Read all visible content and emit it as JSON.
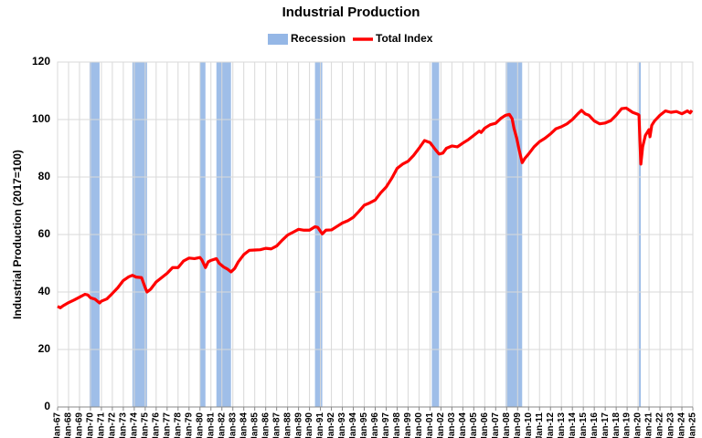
{
  "chart_data": {
    "type": "line",
    "title": "Industrial Production",
    "y_label": "Industrial Production (2017=100)",
    "ylim": [
      0,
      120
    ],
    "yticks": [
      0,
      20,
      40,
      60,
      80,
      100,
      120
    ],
    "xlim": [
      "1967-01",
      "2025-01"
    ],
    "xticks": [
      {
        "value": "1967-01",
        "label": "Jan-67"
      },
      {
        "value": "1968-01",
        "label": "Jan-68"
      },
      {
        "value": "1969-01",
        "label": "Jan-69"
      },
      {
        "value": "1970-01",
        "label": "Jan-70"
      },
      {
        "value": "1971-01",
        "label": "Jan-71"
      },
      {
        "value": "1972-01",
        "label": "Jan-72"
      },
      {
        "value": "1973-01",
        "label": "Jan-73"
      },
      {
        "value": "1974-01",
        "label": "Jan-74"
      },
      {
        "value": "1975-01",
        "label": "Jan-75"
      },
      {
        "value": "1976-01",
        "label": "Jan-76"
      },
      {
        "value": "1977-01",
        "label": "Jan-77"
      },
      {
        "value": "1978-01",
        "label": "Jan-78"
      },
      {
        "value": "1979-01",
        "label": "Jan-79"
      },
      {
        "value": "1980-01",
        "label": "Jan-80"
      },
      {
        "value": "1981-01",
        "label": "Jan-81"
      },
      {
        "value": "1982-01",
        "label": "Jan-82"
      },
      {
        "value": "1983-01",
        "label": "Jan-83"
      },
      {
        "value": "1984-01",
        "label": "Jan-84"
      },
      {
        "value": "1985-01",
        "label": "Jan-85"
      },
      {
        "value": "1986-01",
        "label": "Jan-86"
      },
      {
        "value": "1987-01",
        "label": "Jan-87"
      },
      {
        "value": "1988-01",
        "label": "Jan-88"
      },
      {
        "value": "1989-01",
        "label": "Jan-89"
      },
      {
        "value": "1990-01",
        "label": "Jan-90"
      },
      {
        "value": "1991-01",
        "label": "Jan-91"
      },
      {
        "value": "1992-01",
        "label": "Jan-92"
      },
      {
        "value": "1993-01",
        "label": "Jan-93"
      },
      {
        "value": "1994-01",
        "label": "Jan-94"
      },
      {
        "value": "1995-01",
        "label": "Jan-95"
      },
      {
        "value": "1996-01",
        "label": "Jan-96"
      },
      {
        "value": "1997-01",
        "label": "Jan-97"
      },
      {
        "value": "1998-01",
        "label": "Jan-98"
      },
      {
        "value": "1999-01",
        "label": "Jan-99"
      },
      {
        "value": "2000-01",
        "label": "Jan-00"
      },
      {
        "value": "2001-01",
        "label": "Jan-01"
      },
      {
        "value": "2002-01",
        "label": "Jan-02"
      },
      {
        "value": "2003-01",
        "label": "Jan-03"
      },
      {
        "value": "2004-01",
        "label": "Jan-04"
      },
      {
        "value": "2005-01",
        "label": "Jan-05"
      },
      {
        "value": "2006-01",
        "label": "Jan-06"
      },
      {
        "value": "2007-01",
        "label": "Jan-07"
      },
      {
        "value": "2008-01",
        "label": "Jan-08"
      },
      {
        "value": "2009-01",
        "label": "Jan-09"
      },
      {
        "value": "2010-01",
        "label": "Jan-10"
      },
      {
        "value": "2011-01",
        "label": "Jan-11"
      },
      {
        "value": "2012-01",
        "label": "Jan-12"
      },
      {
        "value": "2013-01",
        "label": "Jan-13"
      },
      {
        "value": "2014-01",
        "label": "Jan-14"
      },
      {
        "value": "2015-01",
        "label": "Jan-15"
      },
      {
        "value": "2016-01",
        "label": "Jan-16"
      },
      {
        "value": "2017-01",
        "label": "Jan-17"
      },
      {
        "value": "2018-01",
        "label": "Jan-18"
      },
      {
        "value": "2019-01",
        "label": "Jan-19"
      },
      {
        "value": "2020-01",
        "label": "Jan-20"
      },
      {
        "value": "2021-01",
        "label": "Jan-21"
      },
      {
        "value": "2022-01",
        "label": "Jan-22"
      },
      {
        "value": "2023-01",
        "label": "Jan-23"
      },
      {
        "value": "2024-01",
        "label": "Jan-24"
      },
      {
        "value": "2025-01",
        "label": "Jan-25"
      }
    ],
    "grid": true,
    "recessions": {
      "name": "Recession",
      "color": "#95b7e6",
      "periods": [
        [
          "1969-12",
          "1970-11"
        ],
        [
          "1973-11",
          "1975-03"
        ],
        [
          "1980-01",
          "1980-07"
        ],
        [
          "1981-07",
          "1982-11"
        ],
        [
          "1990-07",
          "1991-03"
        ],
        [
          "2001-03",
          "2001-11"
        ],
        [
          "2007-12",
          "2009-06"
        ],
        [
          "2020-02",
          "2020-04"
        ]
      ]
    },
    "x": [
      "1967-01",
      "1967-04",
      "1967-07",
      "1968-01",
      "1968-07",
      "1969-01",
      "1969-07",
      "1969-10",
      "1970-01",
      "1970-06",
      "1970-11",
      "1971-01",
      "1971-07",
      "1972-01",
      "1972-07",
      "1973-01",
      "1973-07",
      "1973-11",
      "1974-03",
      "1974-09",
      "1975-01",
      "1975-03",
      "1975-07",
      "1976-01",
      "1976-07",
      "1977-01",
      "1977-07",
      "1978-01",
      "1978-07",
      "1979-01",
      "1979-07",
      "1980-01",
      "1980-03",
      "1980-07",
      "1980-10",
      "1981-01",
      "1981-07",
      "1981-10",
      "1982-03",
      "1982-07",
      "1982-11",
      "1983-03",
      "1983-07",
      "1984-01",
      "1984-07",
      "1985-01",
      "1985-07",
      "1986-01",
      "1986-07",
      "1987-01",
      "1987-07",
      "1988-01",
      "1988-07",
      "1989-01",
      "1989-07",
      "1990-01",
      "1990-07",
      "1990-10",
      "1991-03",
      "1991-07",
      "1992-01",
      "1992-07",
      "1993-01",
      "1993-07",
      "1994-01",
      "1994-07",
      "1995-01",
      "1995-07",
      "1996-01",
      "1996-07",
      "1997-01",
      "1997-07",
      "1998-01",
      "1998-07",
      "1999-01",
      "1999-07",
      "2000-01",
      "2000-07",
      "2001-01",
      "2001-07",
      "2001-11",
      "2002-03",
      "2002-07",
      "2003-01",
      "2003-07",
      "2004-01",
      "2004-07",
      "2005-01",
      "2005-07",
      "2005-09",
      "2006-01",
      "2006-07",
      "2007-01",
      "2007-07",
      "2007-12",
      "2008-04",
      "2008-07",
      "2008-09",
      "2008-12",
      "2009-03",
      "2009-06",
      "2009-09",
      "2010-01",
      "2010-07",
      "2011-01",
      "2011-07",
      "2012-01",
      "2012-07",
      "2013-01",
      "2013-07",
      "2014-01",
      "2014-07",
      "2014-11",
      "2015-03",
      "2015-07",
      "2016-01",
      "2016-07",
      "2017-01",
      "2017-07",
      "2018-01",
      "2018-07",
      "2018-12",
      "2019-07",
      "2020-01",
      "2020-02",
      "2020-04",
      "2020-06",
      "2020-09",
      "2021-01",
      "2021-02",
      "2021-04",
      "2021-07",
      "2022-01",
      "2022-07",
      "2023-01",
      "2023-07",
      "2024-01",
      "2024-07",
      "2024-10",
      "2024-12"
    ],
    "series": [
      {
        "name": "Total Index",
        "color": "#ff0000",
        "values": [
          35.0,
          34.5,
          35.2,
          36.3,
          37.2,
          38.2,
          39.2,
          39.0,
          38.0,
          37.5,
          36.2,
          36.8,
          37.6,
          39.5,
          41.5,
          44.0,
          45.3,
          45.8,
          45.2,
          45.0,
          41.5,
          40.0,
          41.0,
          43.5,
          45.0,
          46.5,
          48.5,
          48.5,
          50.8,
          51.8,
          51.6,
          52.0,
          51.2,
          48.5,
          50.5,
          51.0,
          51.6,
          50.0,
          48.7,
          48.0,
          47.0,
          48.2,
          50.5,
          53.0,
          54.5,
          54.6,
          54.7,
          55.2,
          55.0,
          56.0,
          58.0,
          59.8,
          60.8,
          61.8,
          61.5,
          61.5,
          62.7,
          62.5,
          60.2,
          61.5,
          61.6,
          62.8,
          64.0,
          64.8,
          66.0,
          68.0,
          70.2,
          71.0,
          72.0,
          74.5,
          76.5,
          79.5,
          83.0,
          84.5,
          85.5,
          87.5,
          90.0,
          92.7,
          92.0,
          89.5,
          88.0,
          88.3,
          90.0,
          90.8,
          90.5,
          91.8,
          93.0,
          94.5,
          96.0,
          95.5,
          97.0,
          98.2,
          98.7,
          100.5,
          101.5,
          101.8,
          100.3,
          97.0,
          93.5,
          89.0,
          85.0,
          86.5,
          88.0,
          90.5,
          92.3,
          93.5,
          95.0,
          96.8,
          97.5,
          98.5,
          100.0,
          102.0,
          103.2,
          102.0,
          101.5,
          99.5,
          98.5,
          98.8,
          99.6,
          101.5,
          103.8,
          104.0,
          102.5,
          101.8,
          101.5,
          84.5,
          90.5,
          94.5,
          96.5,
          94.0,
          98.0,
          99.5,
          101.5,
          103.0,
          102.5,
          102.8,
          102.0,
          103.0,
          102.3,
          103.2
        ]
      }
    ]
  }
}
